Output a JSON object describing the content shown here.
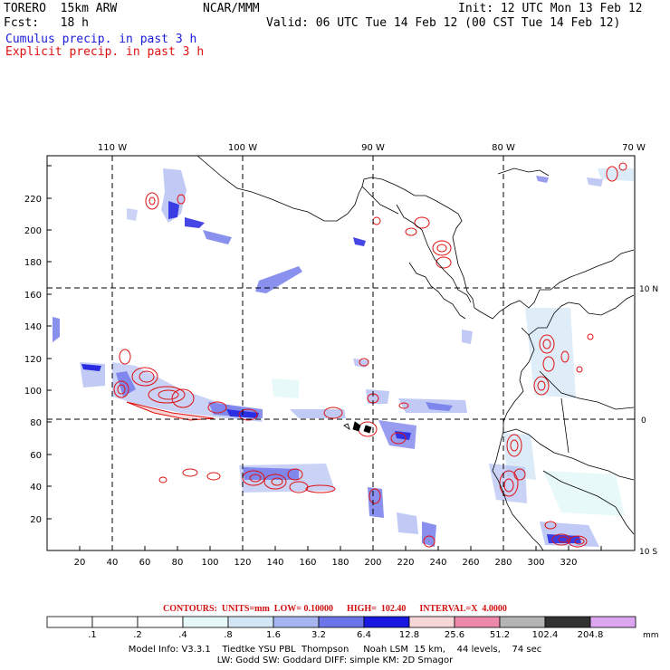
{
  "header": {
    "model": "TORERO  15km ARW",
    "org": "NCAR/MMM",
    "init": "Init: 12 UTC Mon 13 Feb 12",
    "fcst": "Fcst:   18 h",
    "valid": "Valid: 06 UTC Tue 14 Feb 12 (00 CST Tue 14 Feb 12)",
    "legend_cumulus": "Cumulus precip. in past 3 h",
    "legend_explicit": "Explicit precip. in past 3 h"
  },
  "map": {
    "lon_labels": [
      "110 W",
      "100 W",
      "90 W",
      "80 W",
      "70 W"
    ],
    "lat_labels": [
      "10 N",
      "0",
      "10 S"
    ],
    "y_ticks": [
      "20",
      "40",
      "60",
      "80",
      "100",
      "120",
      "140",
      "160",
      "180",
      "200",
      "220"
    ],
    "x_ticks": [
      "20",
      "40",
      "60",
      "80",
      "100",
      "120",
      "140",
      "160",
      "180",
      "200",
      "220",
      "240",
      "260",
      "280",
      "300",
      "320"
    ]
  },
  "contours_line": "CONTOURS:  UNITS=mm  LOW= 0.10000      HIGH=  102.40      INTERVAL=X  4.0000",
  "colorbar": {
    "labels": [
      ".1",
      ".2",
      ".4",
      ".8",
      "1.6",
      "3.2",
      "6.4",
      "12.8",
      "25.6",
      "51.2",
      "102.4",
      "204.8"
    ],
    "units": "mm",
    "colors": [
      "#ffffff",
      "#ffffff",
      "#ffffff",
      "#e6f8f8",
      "#d2e6f6",
      "#a6b4f0",
      "#6c74ea",
      "#1818e0",
      "#f6d6d6",
      "#ee88aa",
      "#b4b4b4",
      "#323232",
      "#dca6f0"
    ]
  },
  "model_info_1": "Model Info: V3.3.1    Tiedtke YSU PBL  Thompson     Noah LSM  15 km,    44 levels,    74 sec",
  "model_info_2": "LW: Godd SW: Goddard DIFF: simple KM: 2D Smagor"
}
